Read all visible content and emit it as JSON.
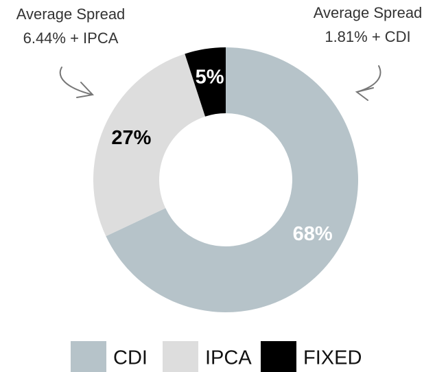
{
  "chart_data": {
    "type": "donut",
    "categories": [
      "CDI",
      "IPCA",
      "FIXED"
    ],
    "values": [
      68,
      27,
      5
    ],
    "value_labels": [
      "68%",
      "27%",
      "5%"
    ],
    "colors": [
      "#b6c3c9",
      "#dddddd",
      "#000000"
    ],
    "label_colors": [
      "#ffffff",
      "#000000",
      "#ffffff"
    ],
    "annotations": [
      {
        "lines": [
          "Average Spread",
          "6.44% + IPCA"
        ]
      },
      {
        "lines": [
          "Average Spread",
          "1.81% + CDI"
        ]
      }
    ],
    "legend": "bottom"
  }
}
